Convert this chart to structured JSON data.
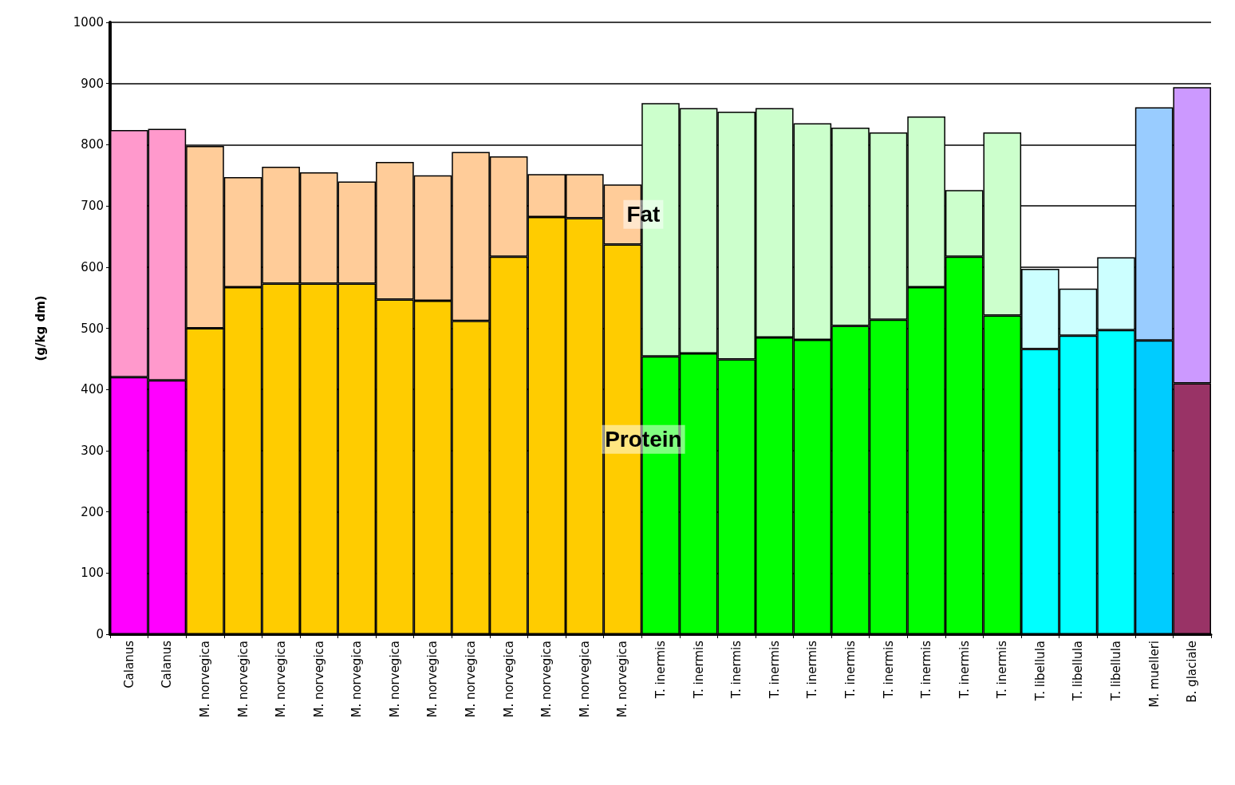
{
  "chart_data": {
    "type": "bar",
    "stacked": true,
    "ylabel": "(g/kg dm)",
    "categories": [
      "Calanus",
      "Calanus",
      "M. norvegica",
      "M. norvegica",
      "M. norvegica",
      "M. norvegica",
      "M. norvegica",
      "M. norvegica",
      "M. norvegica",
      "M. norvegica",
      "M. norvegica",
      "M. norvegica",
      "M. norvegica",
      "M. norvegica",
      "T. inermis",
      "T. inermis",
      "T. inermis",
      "T. inermis",
      "T. inermis",
      "T. inermis",
      "T. inermis",
      "T. inermis",
      "T. inermis",
      "T. inermis",
      "T. libellula",
      "T. libellula",
      "T. libellula",
      "M. muelleri",
      "B. glaciale"
    ],
    "series": [
      {
        "name": "Protein",
        "values": [
          420,
          415,
          500,
          567,
          573,
          573,
          573,
          547,
          545,
          512,
          617,
          682,
          680,
          637,
          454,
          459,
          449,
          485,
          481,
          504,
          514,
          567,
          617,
          521,
          466,
          488,
          497,
          480,
          410
        ],
        "colors": [
          "#ff00ff",
          "#ff00ff",
          "#ffcc00",
          "#ffcc00",
          "#ffcc00",
          "#ffcc00",
          "#ffcc00",
          "#ffcc00",
          "#ffcc00",
          "#ffcc00",
          "#ffcc00",
          "#ffcc00",
          "#ffcc00",
          "#ffcc00",
          "#00ff00",
          "#00ff00",
          "#00ff00",
          "#00ff00",
          "#00ff00",
          "#00ff00",
          "#00ff00",
          "#00ff00",
          "#00ff00",
          "#00ff00",
          "#00ffff",
          "#00ffff",
          "#00ffff",
          "#00ccff",
          "#993366"
        ]
      },
      {
        "name": "Fat",
        "values": [
          404,
          411,
          298,
          180,
          191,
          182,
          167,
          225,
          205,
          276,
          164,
          70,
          72,
          98,
          414,
          401,
          405,
          375,
          354,
          324,
          306,
          279,
          109,
          299,
          131,
          77,
          119,
          381,
          484
        ],
        "colors": [
          "#ff99cc",
          "#ff99cc",
          "#ffcc99",
          "#ffcc99",
          "#ffcc99",
          "#ffcc99",
          "#ffcc99",
          "#ffcc99",
          "#ffcc99",
          "#ffcc99",
          "#ffcc99",
          "#ffcc99",
          "#ffcc99",
          "#ffcc99",
          "#ccffcc",
          "#ccffcc",
          "#ccffcc",
          "#ccffcc",
          "#ccffcc",
          "#ccffcc",
          "#ccffcc",
          "#ccffcc",
          "#ccffcc",
          "#ccffcc",
          "#ccffff",
          "#ccffff",
          "#ccffff",
          "#99ccff",
          "#cc99ff"
        ]
      }
    ],
    "ylim": [
      0,
      1000
    ],
    "yticks": [
      0,
      100,
      200,
      300,
      400,
      500,
      600,
      700,
      800,
      900,
      1000
    ],
    "grid": "y",
    "legend": false
  }
}
